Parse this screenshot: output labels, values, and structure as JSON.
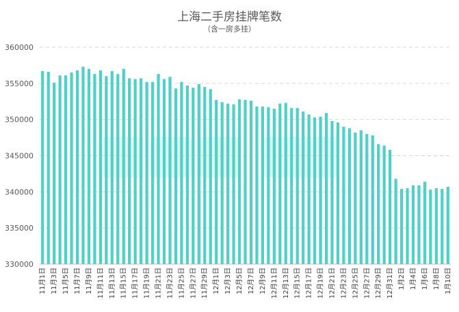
{
  "title": "上海二手房挂牌笔数",
  "subtitle": "（含一房多挂）",
  "colors": {
    "bar": "#4fd1c7",
    "watermark": "#c8f0ea"
  },
  "chart_data": {
    "type": "bar",
    "title": "上海二手房挂牌笔数",
    "subtitle": "（含一房多挂）",
    "ylim": [
      330000,
      360000
    ],
    "yticks": [
      330000,
      335000,
      340000,
      345000,
      350000,
      355000,
      360000
    ],
    "grid": true,
    "categories": [
      "11月1日",
      "11月2日",
      "11月3日",
      "11月4日",
      "11月5日",
      "11月6日",
      "11月7日",
      "11月8日",
      "11月9日",
      "11月10日",
      "11月11日",
      "11月12日",
      "11月13日",
      "11月14日",
      "11月15日",
      "11月16日",
      "11月17日",
      "11月18日",
      "11月19日",
      "11月20日",
      "11月21日",
      "11月22日",
      "11月23日",
      "11月24日",
      "11月25日",
      "11月26日",
      "11月27日",
      "11月28日",
      "11月29日",
      "11月30日",
      "12月1日",
      "12月2日",
      "12月3日",
      "12月4日",
      "12月5日",
      "12月6日",
      "12月7日",
      "12月8日",
      "12月9日",
      "12月10日",
      "12月11日",
      "12月12日",
      "12月13日",
      "12月14日",
      "12月15日",
      "12月16日",
      "12月17日",
      "12月18日",
      "12月19日",
      "12月20日",
      "12月21日",
      "12月22日",
      "12月23日",
      "12月24日",
      "12月25日",
      "12月26日",
      "12月27日",
      "12月28日",
      "12月29日",
      "12月30日",
      "12月31日",
      "1月1日",
      "1月2日",
      "1月3日",
      "1月4日",
      "1月5日",
      "1月6日",
      "1月7日",
      "1月8日",
      "1月9日",
      "1月10日"
    ],
    "values": [
      356700,
      356600,
      355100,
      356100,
      356100,
      356500,
      356800,
      357300,
      357000,
      356300,
      356800,
      356000,
      356700,
      356300,
      357000,
      355700,
      355600,
      355700,
      355200,
      355200,
      356300,
      355600,
      355900,
      354300,
      355200,
      354700,
      354400,
      354900,
      354500,
      354200,
      352700,
      352400,
      352200,
      352100,
      352800,
      352700,
      352600,
      351800,
      351800,
      351700,
      351500,
      352200,
      352300,
      351600,
      351600,
      351100,
      350700,
      350300,
      350400,
      350900,
      349800,
      349600,
      349000,
      348800,
      348200,
      348500,
      348000,
      347800,
      346600,
      346400,
      345800,
      341800,
      340400,
      340500,
      340900,
      340900,
      341400,
      340300,
      340500,
      340400,
      340700
    ],
    "xtick_labels": [
      "11月1日",
      "11月3日",
      "11月5日",
      "11月7日",
      "11月9日",
      "11月11日",
      "11月13日",
      "11月15日",
      "11月17日",
      "11月19日",
      "11月21日",
      "11月23日",
      "11月25日",
      "11月27日",
      "11月29日",
      "12月1日",
      "12月3日",
      "12月5日",
      "12月7日",
      "12月9日",
      "12月11日",
      "12月13日",
      "12月15日",
      "12月17日",
      "12月19日",
      "12月21日",
      "12月23日",
      "12月25日",
      "12月27日",
      "12月29日",
      "12月31日",
      "1月2日",
      "1月4日",
      "1月6日",
      "1月8日",
      "1月10日"
    ]
  }
}
